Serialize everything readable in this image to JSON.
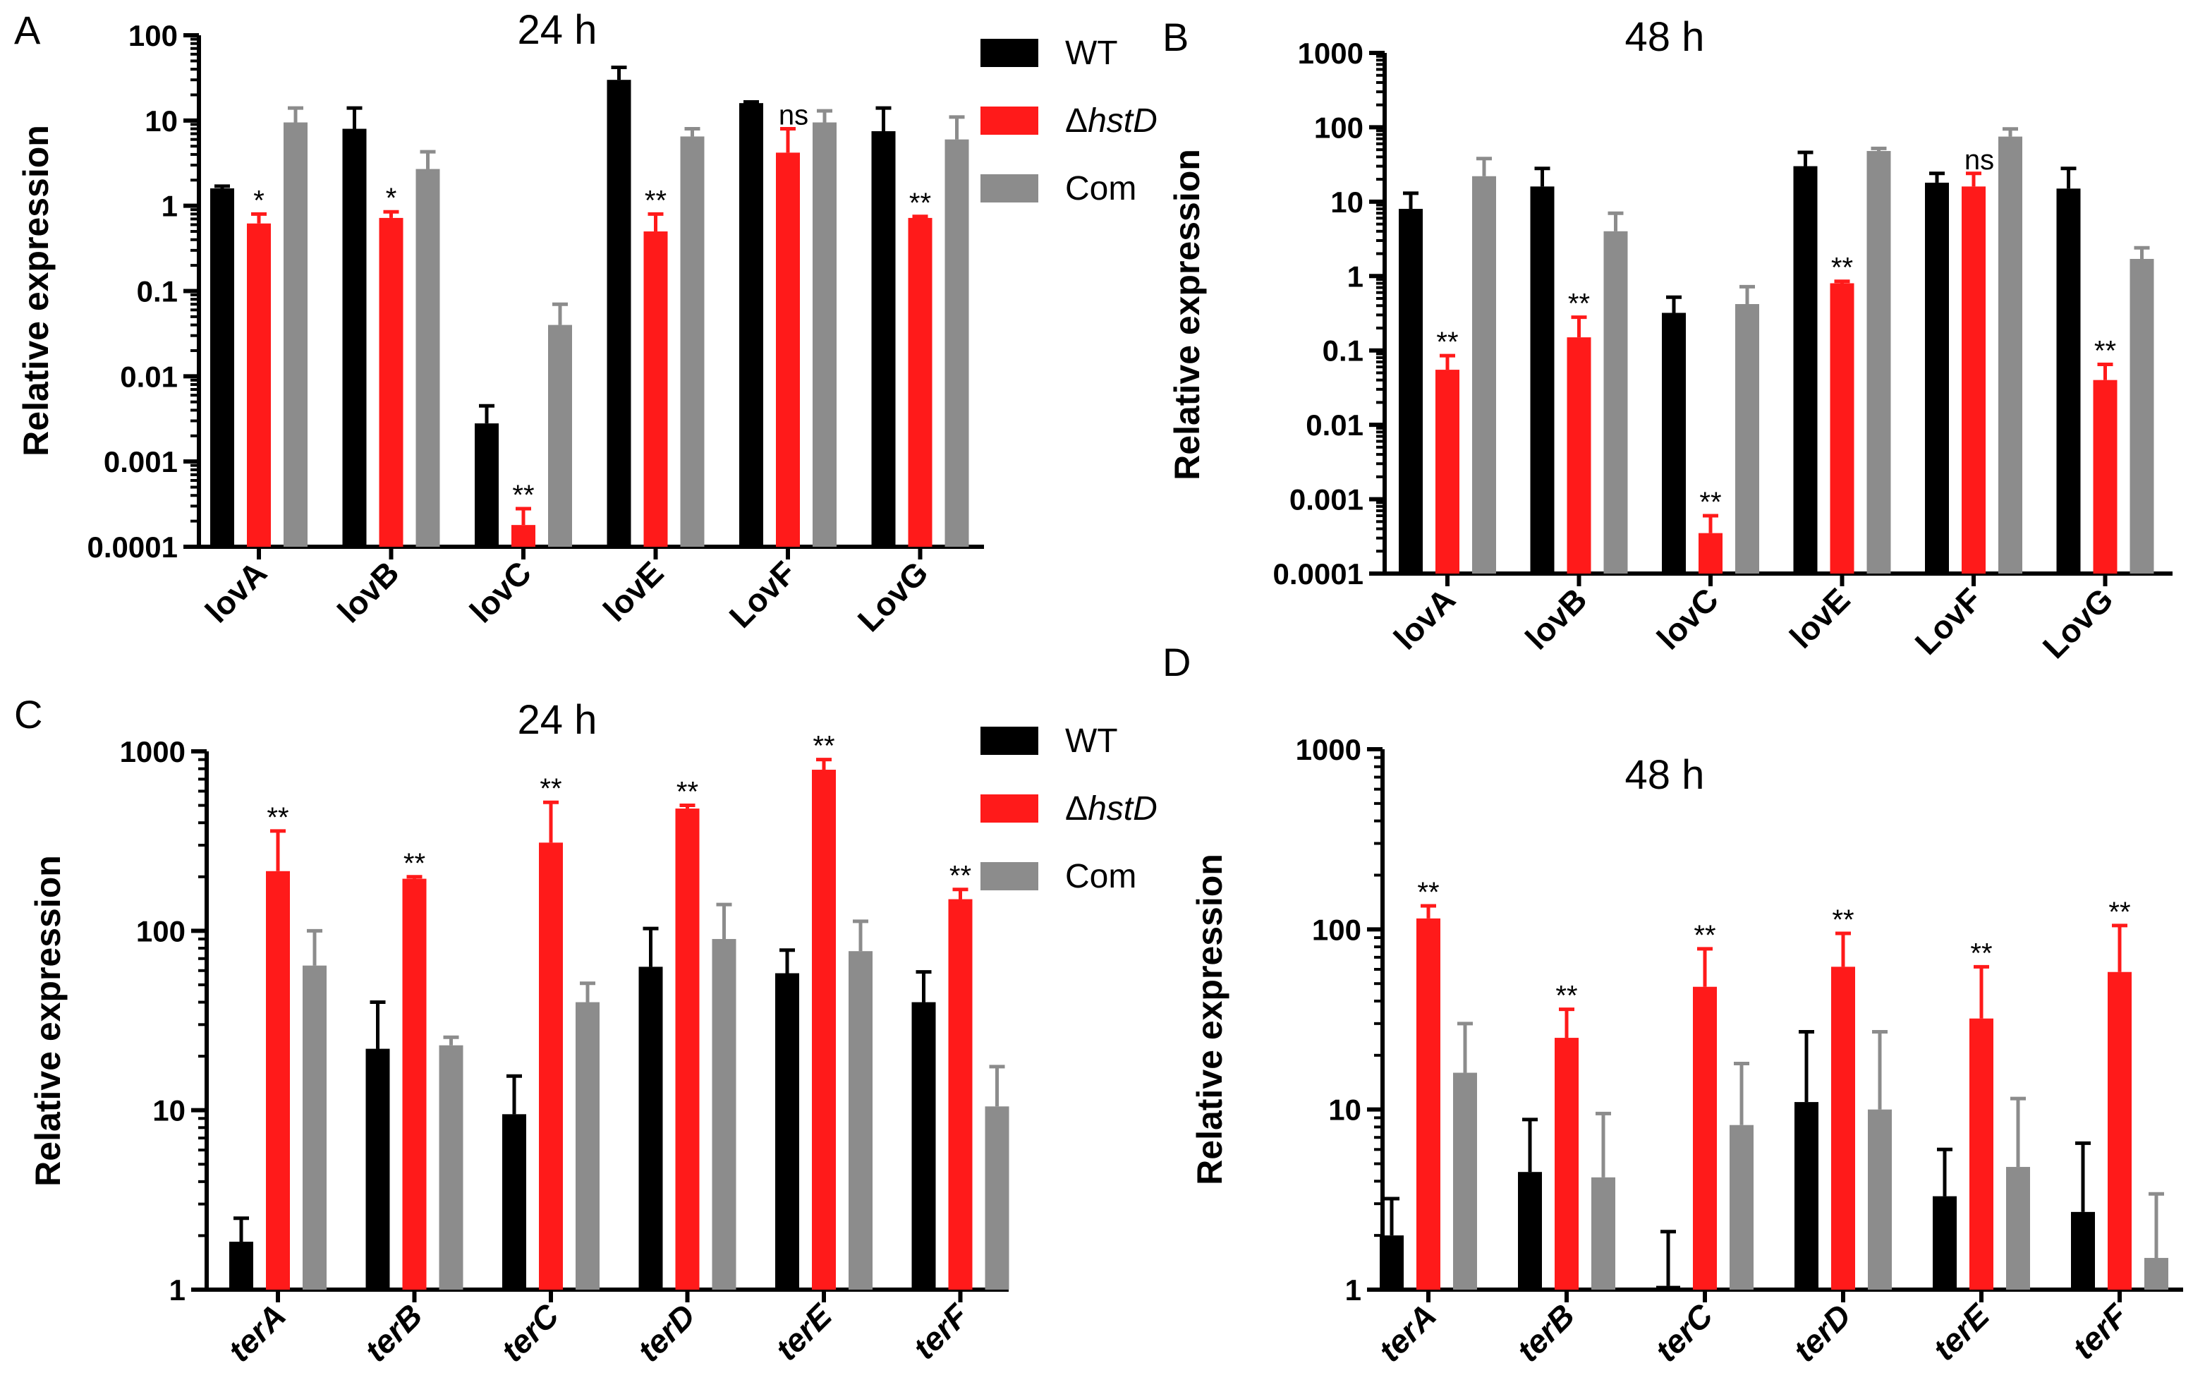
{
  "figure": {
    "colors": {
      "WT": "#000000",
      "hstD": "#ff1a1a",
      "Com": "#8c8c8c"
    },
    "legend_entries": [
      {
        "name": "WT",
        "color_key": "WT",
        "prefix": "",
        "italic": ""
      },
      {
        "name": "ΔhstD",
        "color_key": "hstD",
        "prefix": "Δ",
        "italic": "hstD"
      },
      {
        "name": "Com",
        "color_key": "Com",
        "prefix": "",
        "italic": ""
      }
    ]
  },
  "chart_data": [
    {
      "panel": "A",
      "type": "bar",
      "title": "24 h",
      "xlabel": "",
      "ylabel": "Relative expression",
      "yscale": "log",
      "ylim": [
        0.0001,
        100
      ],
      "yticks": [
        "0.0001",
        "0.001",
        "0.01",
        "0.1",
        "1",
        "10",
        "100"
      ],
      "categories": [
        "lovA",
        "lovB",
        "lovC",
        "lovE",
        "LovF",
        "LovG"
      ],
      "series": [
        {
          "name": "WT",
          "values": [
            1.6,
            8,
            0.0028,
            30,
            16,
            7.5
          ],
          "err_hi": [
            1.7,
            14,
            0.0045,
            42,
            16.5,
            14
          ]
        },
        {
          "name": "ΔhstD",
          "values": [
            0.62,
            0.72,
            0.00018,
            0.5,
            4.2,
            0.72
          ],
          "err_hi": [
            0.8,
            0.85,
            0.00028,
            0.8,
            8,
            0.75
          ],
          "annotations": [
            "*",
            "*",
            "**",
            "**",
            "ns",
            "**"
          ]
        },
        {
          "name": "Com",
          "values": [
            9.5,
            2.7,
            0.04,
            6.5,
            9.5,
            6
          ],
          "err_hi": [
            14,
            4.3,
            0.07,
            8,
            13,
            11
          ]
        }
      ],
      "legend": "right"
    },
    {
      "panel": "B",
      "type": "bar",
      "title": "48 h",
      "xlabel": "",
      "ylabel": "Relative expression",
      "yscale": "log",
      "ylim": [
        0.0001,
        1000
      ],
      "yticks": [
        "0.0001",
        "0.001",
        "0.01",
        "0.1",
        "1",
        "10",
        "100",
        "1000"
      ],
      "categories": [
        "lovA",
        "lovB",
        "lovC",
        "lovE",
        "LovF",
        "LovG"
      ],
      "series": [
        {
          "name": "WT",
          "values": [
            8,
            16,
            0.32,
            30,
            18,
            15
          ],
          "err_hi": [
            13,
            28,
            0.52,
            46,
            24,
            28
          ]
        },
        {
          "name": "ΔhstD",
          "values": [
            0.055,
            0.15,
            0.00035,
            0.8,
            16,
            0.04
          ],
          "err_hi": [
            0.085,
            0.28,
            0.0006,
            0.85,
            24,
            0.065
          ],
          "annotations": [
            "**",
            "**",
            "**",
            "**",
            "ns",
            "**"
          ]
        },
        {
          "name": "Com",
          "values": [
            22,
            4,
            0.42,
            48,
            75,
            1.7
          ],
          "err_hi": [
            38,
            7,
            0.72,
            52,
            95,
            2.4
          ]
        }
      ]
    },
    {
      "panel": "C",
      "type": "bar",
      "title": "24 h",
      "xlabel": "",
      "ylabel": "Relative expression",
      "yscale": "log",
      "ylim": [
        1,
        1000
      ],
      "yticks": [
        "1",
        "10",
        "100",
        "1000"
      ],
      "categories": [
        "terA",
        "terB",
        "terC",
        "terD",
        "terE",
        "terF"
      ],
      "series": [
        {
          "name": "WT",
          "values": [
            1.85,
            22,
            9.5,
            63,
            58,
            40
          ],
          "err_hi": [
            2.5,
            40,
            15.5,
            103,
            78,
            59
          ]
        },
        {
          "name": "ΔhstD",
          "values": [
            215,
            195,
            310,
            480,
            790,
            150
          ],
          "err_hi": [
            360,
            200,
            520,
            500,
            900,
            170
          ],
          "annotations": [
            "**",
            "**",
            "**",
            "**",
            "**",
            "**"
          ]
        },
        {
          "name": "Com",
          "values": [
            64,
            23,
            40,
            90,
            77,
            10.5
          ],
          "err_hi": [
            100,
            25.5,
            51,
            140,
            113,
            17.5
          ]
        }
      ],
      "legend": "right"
    },
    {
      "panel": "D",
      "type": "bar",
      "title": "48 h",
      "xlabel": "",
      "ylabel": "Relative expression",
      "yscale": "log",
      "ylim": [
        1,
        1000
      ],
      "yticks": [
        "1",
        "10",
        "100",
        "1000"
      ],
      "categories": [
        "terA",
        "terB",
        "terC",
        "terD",
        "terE",
        "terF"
      ],
      "series": [
        {
          "name": "WT",
          "values": [
            2,
            4.5,
            1.05,
            11,
            3.3,
            2.7
          ],
          "err_hi": [
            3.2,
            8.8,
            2.1,
            27,
            6,
            6.5
          ]
        },
        {
          "name": "ΔhstD",
          "values": [
            115,
            25,
            48,
            62,
            32,
            58
          ],
          "err_hi": [
            135,
            36,
            78,
            95,
            62,
            105
          ],
          "annotations": [
            "**",
            "**",
            "**",
            "**",
            "**",
            "**"
          ]
        },
        {
          "name": "Com",
          "values": [
            16,
            4.2,
            8.2,
            10,
            4.8,
            1.5
          ],
          "err_hi": [
            30,
            9.5,
            18,
            27,
            11.5,
            3.4
          ]
        }
      ]
    }
  ]
}
